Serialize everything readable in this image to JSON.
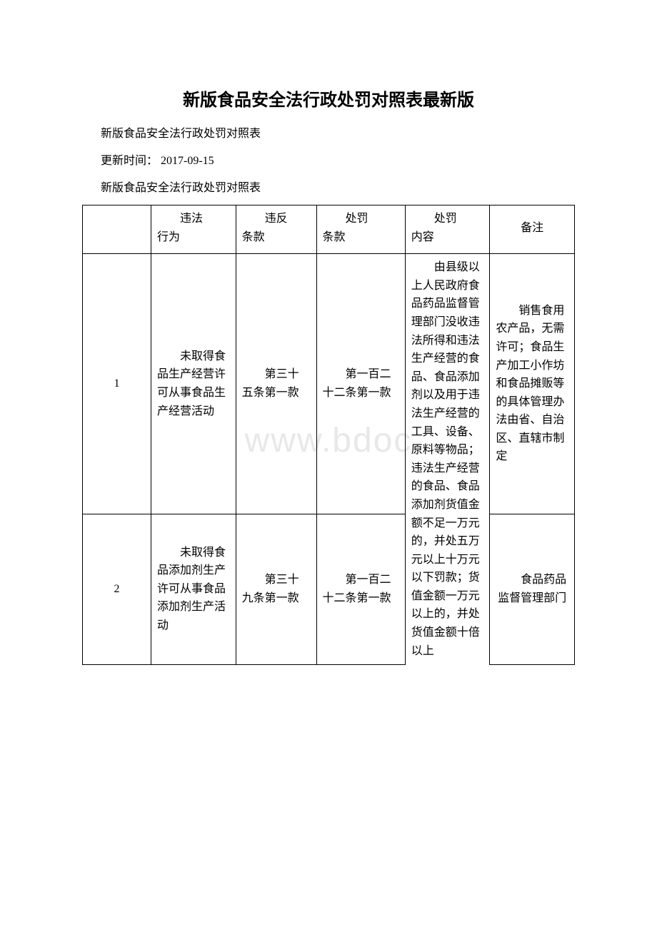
{
  "document": {
    "title": "新版食品安全法行政处罚对照表最新版",
    "line1": "新版食品安全法行政处罚对照表",
    "line2": "更新时间： 2017-09-15",
    "line3": "新版食品安全法行政处罚对照表",
    "watermark": "www.bdoc"
  },
  "table": {
    "headers": {
      "col1": "",
      "col2_line1": "　　违法",
      "col2_line2": "行为",
      "col3_line1": "　　违反",
      "col3_line2": "条款",
      "col4_line1": "　　处罚",
      "col4_line2": "条款",
      "col5_line1": "　　处罚",
      "col5_line2": "内容",
      "col6": "备注"
    },
    "rows": [
      {
        "num": "1",
        "act": "　　未取得食品生产经营许可从事食品生产经营活动",
        "clause1": "　　第三十五条第一款",
        "clause2": "　　第一百二十二条第一款",
        "content_part1": "　　由县级以上人民政府食品药品监督管理部门没收违法所得和违法生产经营的食品、食品添加剂以及用于违法生产经",
        "note": "　　销售食用农产品，无需许可；食品生产加工小作坊和食品摊贩等的具体管理办法由省、自治区、直辖市制定"
      },
      {
        "num": "2",
        "act": "　　未取得食品添加剂生产许可从事食品添加剂生产活动",
        "clause1": "　　第三十九条第一款",
        "clause2": "　　第一百二十二条第一款",
        "content_part2": "营的工具、设备、原料等物品；违法生产经营的食品、食品添加剂货值金额不足一万元的，并处五万元以上十万元以下罚款；货值金额一万元以上的，并处货值金额十倍以上",
        "note": "　　食品药品监督管理部门"
      }
    ]
  },
  "styles": {
    "background_color": "#ffffff",
    "text_color": "#000000",
    "border_color": "#000000",
    "watermark_color": "#e8e8e8",
    "title_fontsize": 24,
    "body_fontsize": 16
  }
}
